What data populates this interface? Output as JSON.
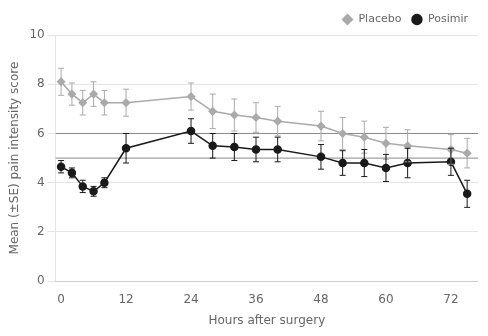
{
  "chart_data": {
    "type": "line",
    "x": [
      0,
      2,
      4,
      6,
      8,
      12,
      24,
      28,
      32,
      36,
      40,
      48,
      52,
      56,
      60,
      64,
      72,
      75
    ],
    "series": [
      {
        "name": "Placebo",
        "color": "#aaaaaa",
        "marker": "diamond",
        "values": [
          8.1,
          7.6,
          7.25,
          7.6,
          7.25,
          7.25,
          7.5,
          6.9,
          6.75,
          6.65,
          6.5,
          6.3,
          6.0,
          5.85,
          5.6,
          5.5,
          5.35,
          5.2
        ],
        "errors": [
          0.55,
          0.45,
          0.5,
          0.5,
          0.5,
          0.55,
          0.55,
          0.7,
          0.65,
          0.6,
          0.6,
          0.6,
          0.65,
          0.65,
          0.65,
          0.65,
          0.6,
          0.6
        ]
      },
      {
        "name": "Posimir",
        "color": "#1a1a1a",
        "marker": "circle",
        "values": [
          4.65,
          4.4,
          3.85,
          3.65,
          4.0,
          5.4,
          6.1,
          5.5,
          5.45,
          5.35,
          5.35,
          5.05,
          4.8,
          4.8,
          4.6,
          4.8,
          4.85,
          3.55
        ],
        "errors": [
          0.25,
          0.2,
          0.25,
          0.2,
          0.2,
          0.6,
          0.5,
          0.5,
          0.55,
          0.5,
          0.5,
          0.5,
          0.5,
          0.55,
          0.55,
          0.6,
          0.55,
          0.55
        ]
      }
    ],
    "reference_lines": [
      5.0,
      6.0
    ],
    "xlabel": "Hours after surgery",
    "ylabel": "Mean (±SE) pain intensity score",
    "xlim": [
      -1,
      77
    ],
    "ylim": [
      0,
      10
    ],
    "xticks": [
      0,
      12,
      24,
      36,
      48,
      60,
      72
    ],
    "yticks": [
      0,
      2,
      4,
      6,
      8,
      10
    ],
    "grid": true,
    "legend": "upper right"
  }
}
